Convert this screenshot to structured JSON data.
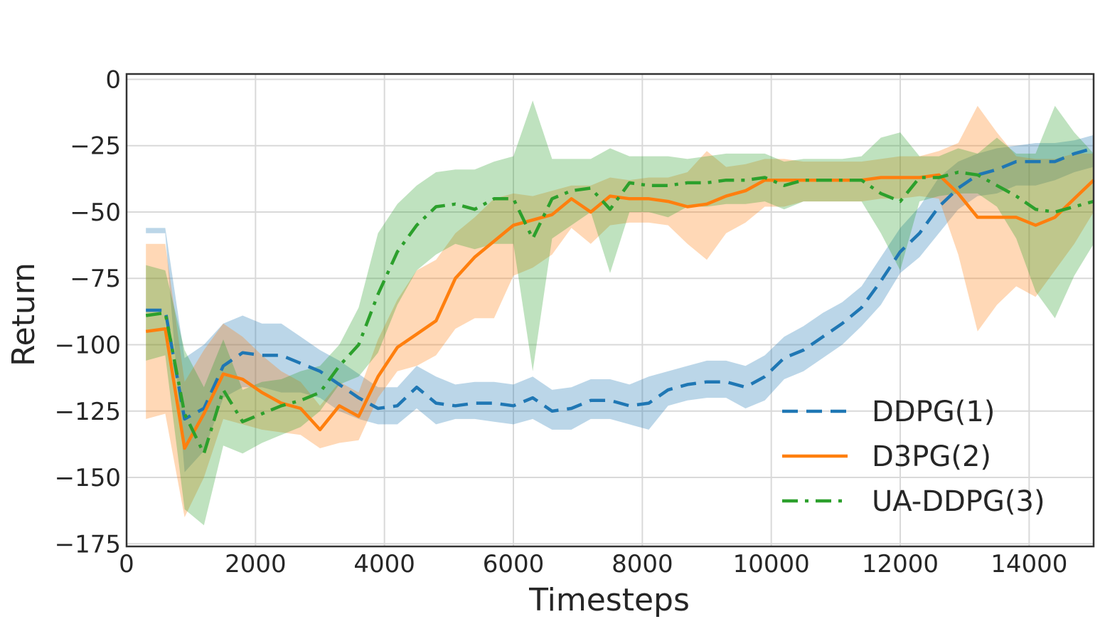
{
  "chart_data": {
    "type": "line",
    "xlabel": "Timesteps",
    "ylabel": "Return",
    "xlim": [
      0,
      15000
    ],
    "ylim": [
      -176,
      2
    ],
    "xticks": [
      0,
      2000,
      4000,
      6000,
      8000,
      10000,
      12000,
      14000
    ],
    "xtick_labels": [
      "0",
      "2000",
      "4000",
      "6000",
      "8000",
      "10000",
      "12000",
      "14000"
    ],
    "yticks": [
      0,
      -25,
      -50,
      -75,
      -100,
      -125,
      -150,
      -175
    ],
    "ytick_labels": [
      "0",
      "−25",
      "−50",
      "−75",
      "−100",
      "−125",
      "−150",
      "−175"
    ],
    "grid": true,
    "legend_position": "lower-right",
    "series": [
      {
        "name": "DDPG(1)",
        "color": "#1f77b4",
        "linestyle": "dashed",
        "x": [
          300,
          600,
          900,
          1200,
          1500,
          1800,
          2100,
          2400,
          2700,
          3000,
          3300,
          3600,
          3900,
          4200,
          4500,
          4800,
          5100,
          5400,
          5700,
          6000,
          6300,
          6600,
          6900,
          7200,
          7500,
          7800,
          8100,
          8400,
          8700,
          9000,
          9300,
          9600,
          9900,
          10200,
          10500,
          10800,
          11100,
          11400,
          11700,
          12000,
          12300,
          12600,
          12900,
          13200,
          13500,
          13800,
          14100,
          14400,
          14700,
          15000
        ],
        "values": [
          -87,
          -87,
          -128,
          -124,
          -108,
          -103,
          -104,
          -104,
          -107,
          -110,
          -115,
          -120,
          -124,
          -123,
          -116,
          -122,
          -123,
          -122,
          -122,
          -123,
          -120,
          -125,
          -124,
          -121,
          -121,
          -123,
          -122,
          -117,
          -115,
          -114,
          -114,
          -116,
          -112,
          -105,
          -102,
          -97,
          -92,
          -86,
          -76,
          -65,
          -58,
          -48,
          -41,
          -36,
          -34,
          -31,
          -31,
          -31,
          -28,
          -26
        ],
        "lower": [
          -58,
          -58,
          -148,
          -140,
          -120,
          -116,
          -116,
          -118,
          -118,
          -120,
          -125,
          -128,
          -130,
          -130,
          -124,
          -130,
          -128,
          -128,
          -129,
          -130,
          -128,
          -132,
          -132,
          -128,
          -128,
          -130,
          -132,
          -123,
          -121,
          -120,
          -120,
          -124,
          -121,
          -113,
          -110,
          -105,
          -100,
          -93,
          -85,
          -73,
          -67,
          -58,
          -49,
          -44,
          -43,
          -40,
          -40,
          -38,
          -35,
          -33
        ],
        "upper": [
          -56,
          -56,
          -105,
          -100,
          -92,
          -89,
          -92,
          -92,
          -97,
          -102,
          -106,
          -111,
          -116,
          -116,
          -108,
          -112,
          -115,
          -114,
          -114,
          -115,
          -112,
          -117,
          -116,
          -113,
          -113,
          -115,
          -112,
          -110,
          -108,
          -106,
          -106,
          -108,
          -104,
          -97,
          -93,
          -88,
          -84,
          -78,
          -67,
          -56,
          -48,
          -37,
          -31,
          -28,
          -26,
          -25,
          -24,
          -24,
          -23,
          -21
        ]
      },
      {
        "name": "D3PG(2)",
        "color": "#ff7f0e",
        "linestyle": "solid",
        "x": [
          300,
          600,
          900,
          1200,
          1500,
          1800,
          2100,
          2400,
          2700,
          3000,
          3300,
          3600,
          3900,
          4200,
          4500,
          4800,
          5100,
          5400,
          5700,
          6000,
          6300,
          6600,
          6900,
          7200,
          7500,
          7800,
          8100,
          8400,
          8700,
          9000,
          9300,
          9600,
          9900,
          10200,
          10500,
          10800,
          11100,
          11400,
          11700,
          12000,
          12300,
          12600,
          12900,
          13200,
          13500,
          13800,
          14100,
          14400,
          14700,
          15000
        ],
        "values": [
          -95,
          -94,
          -139,
          -126,
          -111,
          -113,
          -118,
          -122,
          -124,
          -132,
          -123,
          -127,
          -112,
          -101,
          -96,
          -91,
          -75,
          -67,
          -61,
          -55,
          -53,
          -51,
          -45,
          -50,
          -44,
          -45,
          -45,
          -46,
          -48,
          -47,
          -44,
          -42,
          -38,
          -38,
          -38,
          -38,
          -38,
          -38,
          -37,
          -37,
          -37,
          -36,
          -43,
          -52,
          -52,
          -52,
          -55,
          -52,
          -45,
          -38
        ],
        "lower": [
          -128,
          -126,
          -165,
          -150,
          -128,
          -130,
          -132,
          -133,
          -134,
          -139,
          -137,
          -136,
          -120,
          -110,
          -108,
          -104,
          -94,
          -90,
          -90,
          -74,
          -71,
          -66,
          -56,
          -62,
          -55,
          -54,
          -54,
          -55,
          -62,
          -68,
          -58,
          -54,
          -48,
          -48,
          -46,
          -46,
          -46,
          -46,
          -45,
          -45,
          -44,
          -45,
          -66,
          -95,
          -85,
          -78,
          -82,
          -72,
          -62,
          -50
        ],
        "upper": [
          -62,
          -62,
          -114,
          -102,
          -92,
          -97,
          -104,
          -110,
          -114,
          -123,
          -114,
          -118,
          -98,
          -83,
          -72,
          -68,
          -58,
          -52,
          -45,
          -43,
          -44,
          -42,
          -40,
          -40,
          -37,
          -38,
          -37,
          -37,
          -35,
          -27,
          -33,
          -32,
          -30,
          -30,
          -31,
          -31,
          -31,
          -31,
          -30,
          -29,
          -29,
          -27,
          -24,
          -10,
          -20,
          -29,
          -30,
          -30,
          -28,
          -28
        ]
      },
      {
        "name": "UA-DDPG(3)",
        "color": "#2ca02c",
        "linestyle": "dashdot",
        "x": [
          300,
          600,
          900,
          1200,
          1500,
          1800,
          2100,
          2400,
          2700,
          3000,
          3300,
          3600,
          3900,
          4200,
          4500,
          4800,
          5100,
          5400,
          5700,
          6000,
          6300,
          6600,
          6900,
          7200,
          7500,
          7800,
          8100,
          8400,
          8700,
          9000,
          9300,
          9600,
          9900,
          10200,
          10500,
          10800,
          11100,
          11400,
          11700,
          12000,
          12300,
          12600,
          12900,
          13200,
          13500,
          13800,
          14100,
          14400,
          14700,
          15000
        ],
        "values": [
          -89,
          -88,
          -126,
          -141,
          -117,
          -129,
          -126,
          -123,
          -121,
          -118,
          -108,
          -100,
          -81,
          -65,
          -55,
          -48,
          -47,
          -49,
          -45,
          -45,
          -60,
          -45,
          -42,
          -41,
          -49,
          -39,
          -40,
          -40,
          -39,
          -39,
          -38,
          -38,
          -37,
          -40,
          -38,
          -38,
          -38,
          -38,
          -43,
          -46,
          -37,
          -37,
          -35,
          -36,
          -40,
          -44,
          -49,
          -50,
          -48,
          -46
        ],
        "lower": [
          -106,
          -104,
          -162,
          -168,
          -138,
          -141,
          -137,
          -134,
          -131,
          -125,
          -115,
          -112,
          -103,
          -85,
          -72,
          -66,
          -62,
          -64,
          -62,
          -62,
          -110,
          -60,
          -55,
          -50,
          -73,
          -50,
          -50,
          -52,
          -48,
          -48,
          -47,
          -47,
          -46,
          -49,
          -46,
          -46,
          -46,
          -46,
          -58,
          -72,
          -46,
          -44,
          -43,
          -43,
          -48,
          -60,
          -80,
          -90,
          -74,
          -62
        ],
        "upper": [
          -70,
          -72,
          -102,
          -116,
          -98,
          -117,
          -114,
          -113,
          -110,
          -108,
          -100,
          -86,
          -58,
          -47,
          -40,
          -35,
          -34,
          -34,
          -31,
          -29,
          -8,
          -30,
          -30,
          -30,
          -26,
          -29,
          -29,
          -29,
          -30,
          -29,
          -28,
          -28,
          -28,
          -31,
          -30,
          -30,
          -30,
          -29,
          -22,
          -20,
          -29,
          -29,
          -26,
          -28,
          -22,
          -28,
          -28,
          -10,
          -20,
          -28
        ]
      }
    ]
  }
}
